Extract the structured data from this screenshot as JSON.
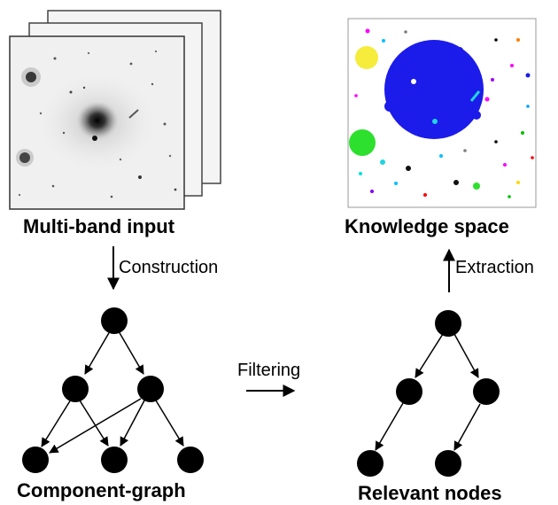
{
  "labels": {
    "input": "Multi-band input",
    "knowledge": "Knowledge space",
    "graph": "Component-graph",
    "relevant": "Relevant nodes",
    "construction": "Construction",
    "filtering": "Filtering",
    "extraction": "Extraction"
  },
  "colors": {
    "node": "#000000",
    "galaxy_bg": "#f2f2f2",
    "blue_region": "#1b1bea",
    "yellow_region": "#f5ec3c",
    "green_region": "#2de02d"
  }
}
